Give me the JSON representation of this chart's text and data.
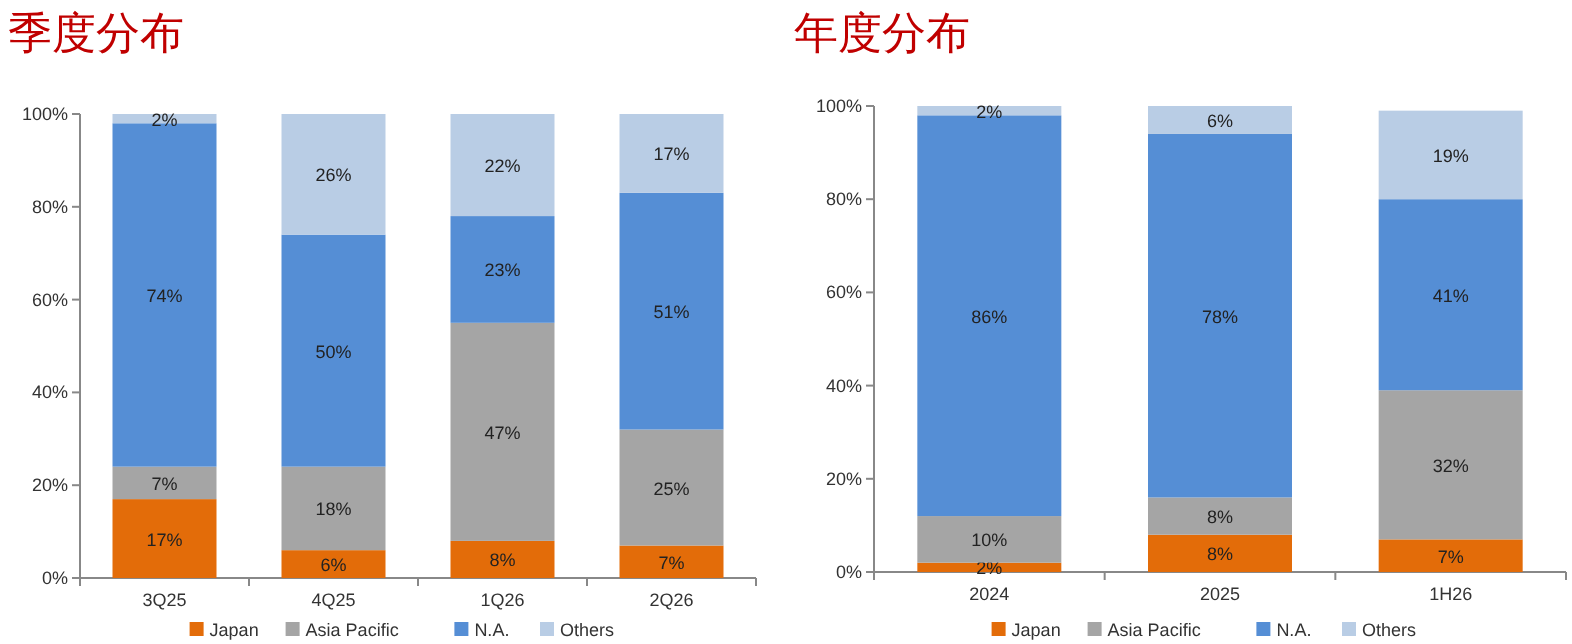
{
  "chart_data": [
    {
      "type": "bar",
      "title": "季度分布",
      "stacked": true,
      "categories": [
        "3Q25",
        "4Q25",
        "1Q26",
        "2Q26"
      ],
      "series": [
        {
          "name": "Japan",
          "color": "#e36c09",
          "values": [
            17,
            6,
            8,
            7
          ],
          "value_labels": [
            "17%",
            "6%",
            "8%",
            "7%"
          ]
        },
        {
          "name": "Asia Pacific",
          "color": "#a5a5a5",
          "values": [
            7,
            18,
            47,
            25
          ],
          "value_labels": [
            "7%",
            "18%",
            "47%",
            "25%"
          ]
        },
        {
          "name": "N.A.",
          "color": "#558ed5",
          "values": [
            74,
            50,
            23,
            51
          ],
          "value_labels": [
            "74%",
            "50%",
            "23%",
            "51%"
          ]
        },
        {
          "name": "Others",
          "color": "#b9cde5",
          "values": [
            2,
            26,
            22,
            17
          ],
          "value_labels": [
            "2%",
            "26%",
            "22%",
            "17%"
          ]
        }
      ],
      "ylim": [
        0,
        100
      ],
      "yticks": [
        {
          "value": 0,
          "label": "0%"
        },
        {
          "value": 20,
          "label": "20%"
        },
        {
          "value": 40,
          "label": "40%"
        },
        {
          "value": 60,
          "label": "60%"
        },
        {
          "value": 80,
          "label": "80%"
        },
        {
          "value": 100,
          "label": "100%"
        }
      ],
      "legend": "bottom",
      "grid": false
    },
    {
      "type": "bar",
      "title": "年度分布",
      "stacked": true,
      "categories": [
        "2024",
        "2025",
        "1H26"
      ],
      "series": [
        {
          "name": "Japan",
          "color": "#e36c09",
          "values": [
            2,
            8,
            7
          ],
          "value_labels": [
            "2%",
            "8%",
            "7%"
          ]
        },
        {
          "name": "Asia Pacific",
          "color": "#a5a5a5",
          "values": [
            10,
            8,
            32
          ],
          "value_labels": [
            "10%",
            "8%",
            "32%"
          ]
        },
        {
          "name": "N.A.",
          "color": "#558ed5",
          "values": [
            86,
            78,
            41
          ],
          "value_labels": [
            "86%",
            "78%",
            "41%"
          ]
        },
        {
          "name": "Others",
          "color": "#b9cde5",
          "values": [
            2,
            6,
            19
          ],
          "value_labels": [
            "2%",
            "6%",
            "19%"
          ]
        }
      ],
      "ylim": [
        0,
        100
      ],
      "yticks": [
        {
          "value": 0,
          "label": "0%"
        },
        {
          "value": 20,
          "label": "20%"
        },
        {
          "value": 40,
          "label": "40%"
        },
        {
          "value": 60,
          "label": "60%"
        },
        {
          "value": 80,
          "label": "80%"
        },
        {
          "value": 100,
          "label": "100%"
        }
      ],
      "legend": "bottom",
      "grid": false
    }
  ]
}
